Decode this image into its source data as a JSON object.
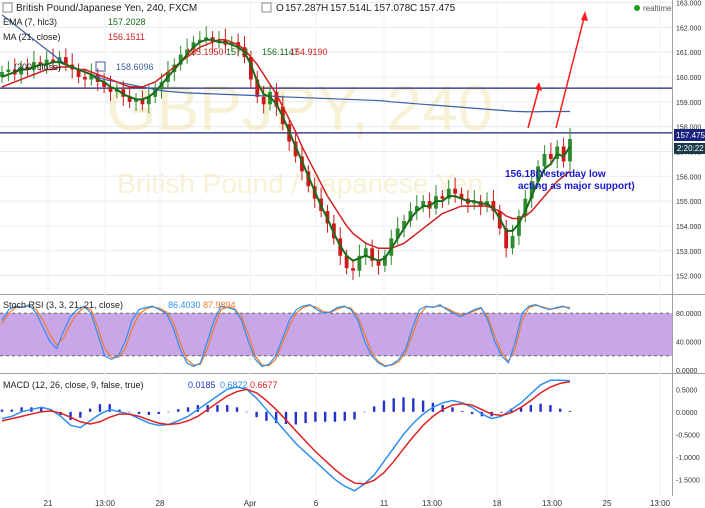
{
  "header": {
    "title": "British Pound/Japanese Yen, 240, FXCM",
    "ohlc": [
      {
        "label": "O",
        "value": "157.287"
      },
      {
        "label": "H",
        "value": "157.514"
      },
      {
        "label": "L",
        "value": "157.078"
      },
      {
        "label": "C",
        "value": "157.475"
      }
    ],
    "realtime": "realtime",
    "watermark_symbol": "GBPJPY, 240",
    "watermark_name": "British Pound / Japanese Yen"
  },
  "colors": {
    "candle_up": "#2e8b2e",
    "candle_down": "#cc1a1a",
    "ema": "#1a6b1a",
    "ma21": "#d42020",
    "ma200": "#3a5ea8",
    "hline": "#1a237e",
    "stoch_k": "#2f8ff0",
    "stoch_d": "#f07a2a",
    "stoch_band": "#c9a6e8",
    "macd_line": "#2f8ff0",
    "macd_signal": "#e02020",
    "macd_hist": "#2233cc",
    "annotation_arrow": "#ff1a1a",
    "annotation_text": "#1a1acc",
    "last_price_bg": "#1a237e",
    "realtime_dot": "#1fa01f"
  },
  "legend": {
    "ema": {
      "label": "EMA (7, hlc3)",
      "value": "157.2028"
    },
    "ma21": {
      "label": "MA (21, close)",
      "value": "156.1511"
    },
    "ma_multi": {
      "values": [
        "155.1950",
        "157.4",
        "156.1147",
        "154.9190"
      ]
    },
    "ma200": {
      "label": "(200, close)",
      "value": "158.6096"
    }
  },
  "annotation": {
    "line1": "156.18(Yesterday low",
    "line2": "acting as major support)"
  },
  "price_tags": {
    "last": "157.475",
    "timer": "2:20:22"
  },
  "stoch": {
    "label": "Stoch RSI (3, 3, 21, 21, close)",
    "k_value": "86.4030",
    "d_value": "87.9894"
  },
  "macd": {
    "label": "MACD (12, 26, close, 9, false, true)",
    "values": [
      "0.0185",
      "0.6872",
      "0.6677"
    ]
  },
  "chart_data": [
    {
      "type": "candlestick",
      "title": "British Pound/Japanese Yen, 240, FXCM",
      "ylim": [
        151.3,
        163.1
      ],
      "y_ticks": [
        "163.000",
        "162.000",
        "161.000",
        "160.000",
        "159.000",
        "158.000",
        "157.000",
        "156.000",
        "155.000",
        "154.000",
        "153.000",
        "152.000"
      ],
      "x_ticks": [
        "21",
        "13:00",
        "28",
        "Apr",
        "6",
        "11",
        "13:00",
        "18",
        "13:00",
        "25",
        "13:00"
      ],
      "horizontal_lines": [
        159.55,
        157.75
      ],
      "close_series": [
        160.2,
        160.3,
        160.1,
        160.4,
        160.3,
        160.6,
        160.5,
        160.7,
        160.6,
        160.8,
        160.5,
        160.3,
        160.0,
        159.9,
        160.1,
        159.8,
        159.6,
        159.4,
        159.5,
        159.2,
        159.0,
        159.1,
        158.9,
        159.2,
        159.5,
        159.8,
        160.2,
        160.5,
        160.9,
        161.1,
        161.4,
        161.5,
        161.6,
        161.4,
        161.5,
        161.3,
        161.4,
        161.2,
        160.8,
        159.9,
        159.2,
        158.9,
        159.4,
        158.8,
        158.1,
        157.4,
        156.8,
        156.2,
        155.6,
        155.1,
        154.6,
        154.1,
        153.5,
        152.8,
        152.3,
        152.2,
        152.8,
        153.1,
        152.6,
        152.4,
        152.8,
        153.5,
        153.9,
        154.2,
        154.6,
        154.8,
        155.0,
        154.7,
        155.2,
        155.1,
        155.5,
        155.3,
        155.1,
        154.9,
        155.0,
        154.8,
        155.0,
        154.6,
        153.9,
        153.1,
        153.6,
        154.4,
        155.1,
        155.8,
        156.4,
        156.9,
        156.7,
        157.2,
        156.6,
        157.5
      ],
      "ema_series": [
        160.0,
        160.1,
        160.2,
        160.3,
        160.3,
        160.4,
        160.5,
        160.5,
        160.6,
        160.6,
        160.5,
        160.4,
        160.3,
        160.2,
        160.1,
        159.9,
        159.8,
        159.6,
        159.5,
        159.3,
        159.2,
        159.1,
        159.1,
        159.2,
        159.4,
        159.7,
        160.0,
        160.3,
        160.6,
        160.9,
        161.2,
        161.4,
        161.5,
        161.5,
        161.4,
        161.4,
        161.3,
        161.2,
        161.0,
        160.5,
        159.8,
        159.3,
        159.2,
        158.9,
        158.4,
        157.8,
        157.2,
        156.6,
        156.0,
        155.4,
        154.8,
        154.3,
        153.7,
        153.2,
        152.8,
        152.6,
        152.7,
        152.8,
        152.7,
        152.6,
        152.7,
        153.1,
        153.5,
        153.9,
        154.3,
        154.6,
        154.8,
        154.8,
        155.0,
        155.0,
        155.2,
        155.2,
        155.1,
        155.0,
        155.0,
        154.9,
        154.9,
        154.7,
        154.3,
        153.8,
        153.8,
        154.1,
        154.6,
        155.2,
        155.8,
        156.3,
        156.5,
        156.9,
        156.8,
        157.2
      ],
      "ma21_series": [
        159.6,
        159.7,
        159.8,
        159.9,
        160.0,
        160.1,
        160.2,
        160.3,
        160.3,
        160.4,
        160.4,
        160.4,
        160.3,
        160.3,
        160.2,
        160.1,
        160.0,
        159.9,
        159.8,
        159.7,
        159.6,
        159.6,
        159.6,
        159.7,
        159.8,
        160.0,
        160.2,
        160.4,
        160.6,
        160.8,
        161.0,
        161.2,
        161.3,
        161.4,
        161.5,
        161.5,
        161.4,
        161.3,
        161.1,
        160.8,
        160.5,
        160.1,
        159.7,
        159.3,
        158.8,
        158.3,
        157.8,
        157.2,
        156.7,
        156.2,
        155.7,
        155.2,
        154.8,
        154.4,
        154.0,
        153.7,
        153.5,
        153.3,
        153.2,
        153.1,
        153.1,
        153.1,
        153.2,
        153.3,
        153.5,
        153.7,
        153.9,
        154.1,
        154.3,
        154.5,
        154.6,
        154.7,
        154.8,
        154.8,
        154.8,
        154.8,
        154.8,
        154.7,
        154.6,
        154.4,
        154.3,
        154.3,
        154.4,
        154.6,
        154.9,
        155.2,
        155.5,
        155.8,
        156.0,
        156.2
      ],
      "ma200_series": [
        162.5,
        162.3,
        162.1,
        161.9,
        161.7,
        161.5,
        161.3,
        161.1,
        160.9,
        160.7,
        160.5,
        160.4,
        160.3,
        160.2,
        160.1,
        160.0,
        159.9,
        159.85,
        159.8,
        159.75,
        159.7,
        159.65,
        159.6,
        159.55,
        159.5,
        159.45,
        159.42,
        159.4,
        159.38,
        159.36,
        159.35,
        159.34,
        159.33,
        159.32,
        159.31,
        159.3,
        159.29,
        159.28,
        159.27,
        159.26,
        159.25,
        159.24,
        159.23,
        159.22,
        159.2,
        159.19,
        159.18,
        159.17,
        159.16,
        159.15,
        159.14,
        159.13,
        159.12,
        159.11,
        159.1,
        159.09,
        159.08,
        159.07,
        159.06,
        159.05,
        159.03,
        159.0,
        158.98,
        158.96,
        158.94,
        158.92,
        158.9,
        158.88,
        158.86,
        158.84,
        158.82,
        158.8,
        158.78,
        158.76,
        158.74,
        158.72,
        158.7,
        158.68,
        158.66,
        158.64,
        158.62,
        158.61,
        158.6,
        158.6,
        158.6,
        158.61,
        158.61,
        158.61,
        158.61,
        158.61
      ]
    },
    {
      "type": "line",
      "title": "Stoch RSI (3, 3, 21, 21, close)",
      "ylim": [
        0,
        100
      ],
      "y_ticks": [
        "80.0000",
        "40.0000",
        "0.0000"
      ],
      "band": [
        20,
        80
      ],
      "series": [
        {
          "name": "K",
          "values": [
            70,
            85,
            90,
            88,
            92,
            80,
            60,
            40,
            30,
            55,
            75,
            85,
            90,
            80,
            50,
            20,
            15,
            20,
            40,
            70,
            85,
            88,
            90,
            85,
            80,
            60,
            30,
            10,
            5,
            10,
            40,
            70,
            90,
            88,
            85,
            70,
            40,
            15,
            5,
            8,
            20,
            45,
            70,
            85,
            90,
            92,
            85,
            80,
            82,
            88,
            90,
            85,
            70,
            40,
            20,
            10,
            5,
            8,
            15,
            30,
            60,
            85,
            90,
            88,
            92,
            85,
            80,
            75,
            80,
            85,
            88,
            70,
            40,
            20,
            10,
            40,
            80,
            90,
            92,
            88,
            85,
            88,
            90,
            86
          ]
        },
        {
          "name": "D",
          "values": [
            65,
            80,
            88,
            89,
            90,
            85,
            70,
            50,
            35,
            45,
            65,
            80,
            88,
            85,
            60,
            30,
            18,
            18,
            30,
            58,
            78,
            86,
            89,
            87,
            82,
            68,
            40,
            15,
            7,
            8,
            30,
            60,
            85,
            89,
            86,
            75,
            50,
            20,
            7,
            6,
            15,
            38,
            62,
            80,
            88,
            91,
            88,
            82,
            81,
            86,
            89,
            87,
            75,
            50,
            25,
            12,
            6,
            7,
            12,
            25,
            50,
            78,
            89,
            89,
            90,
            87,
            82,
            78,
            79,
            83,
            87,
            75,
            48,
            25,
            12,
            30,
            70,
            88,
            91,
            89,
            86,
            87,
            89,
            88
          ]
        }
      ]
    },
    {
      "type": "line",
      "title": "MACD (12, 26, close, 9, false, true)",
      "ylim": [
        -1.8,
        0.75
      ],
      "y_ticks": [
        "0.5000",
        "0.0000",
        "-0.5000",
        "-1.0000",
        "-1.5000"
      ],
      "series": [
        {
          "name": "MACD",
          "values": [
            -0.15,
            -0.1,
            0.0,
            0.05,
            0.1,
            0.05,
            -0.1,
            -0.3,
            -0.35,
            -0.2,
            -0.05,
            0.05,
            0.0,
            -0.05,
            -0.15,
            -0.25,
            -0.3,
            -0.28,
            -0.2,
            -0.1,
            0.05,
            0.2,
            0.35,
            0.5,
            0.55,
            0.5,
            0.3,
            0.05,
            -0.2,
            -0.45,
            -0.7,
            -0.9,
            -1.1,
            -1.3,
            -1.5,
            -1.65,
            -1.75,
            -1.6,
            -1.4,
            -1.1,
            -0.8,
            -0.5,
            -0.25,
            -0.05,
            0.1,
            0.2,
            0.25,
            0.2,
            0.1,
            -0.05,
            -0.15,
            -0.1,
            0.05,
            0.2,
            0.4,
            0.6,
            0.7,
            0.7,
            0.69
          ]
        },
        {
          "name": "Signal",
          "values": [
            -0.2,
            -0.15,
            -0.1,
            -0.05,
            0.0,
            0.02,
            -0.03,
            -0.12,
            -0.22,
            -0.27,
            -0.22,
            -0.12,
            -0.05,
            -0.05,
            -0.1,
            -0.18,
            -0.25,
            -0.28,
            -0.26,
            -0.2,
            -0.1,
            0.05,
            0.2,
            0.35,
            0.45,
            0.5,
            0.42,
            0.25,
            0.05,
            -0.18,
            -0.42,
            -0.65,
            -0.88,
            -1.08,
            -1.28,
            -1.45,
            -1.58,
            -1.6,
            -1.52,
            -1.35,
            -1.1,
            -0.82,
            -0.55,
            -0.3,
            -0.1,
            0.05,
            0.15,
            0.18,
            0.15,
            0.05,
            -0.05,
            -0.08,
            -0.02,
            0.1,
            0.25,
            0.42,
            0.55,
            0.63,
            0.67
          ]
        },
        {
          "name": "Histogram",
          "values": [
            0.05,
            0.05,
            0.1,
            0.1,
            0.1,
            0.03,
            -0.07,
            -0.18,
            -0.13,
            0.07,
            0.17,
            0.17,
            0.05,
            0.0,
            -0.05,
            -0.07,
            -0.05,
            0.0,
            0.06,
            0.1,
            0.15,
            0.15,
            0.15,
            0.15,
            0.1,
            0.0,
            -0.12,
            -0.2,
            -0.25,
            -0.27,
            -0.28,
            -0.25,
            -0.22,
            -0.22,
            -0.22,
            -0.2,
            -0.17,
            0.0,
            0.12,
            0.25,
            0.3,
            0.32,
            0.3,
            0.25,
            0.2,
            0.15,
            0.1,
            0.02,
            -0.05,
            -0.1,
            -0.1,
            -0.02,
            0.07,
            0.1,
            0.15,
            0.18,
            0.15,
            0.07,
            0.02
          ]
        }
      ]
    }
  ]
}
